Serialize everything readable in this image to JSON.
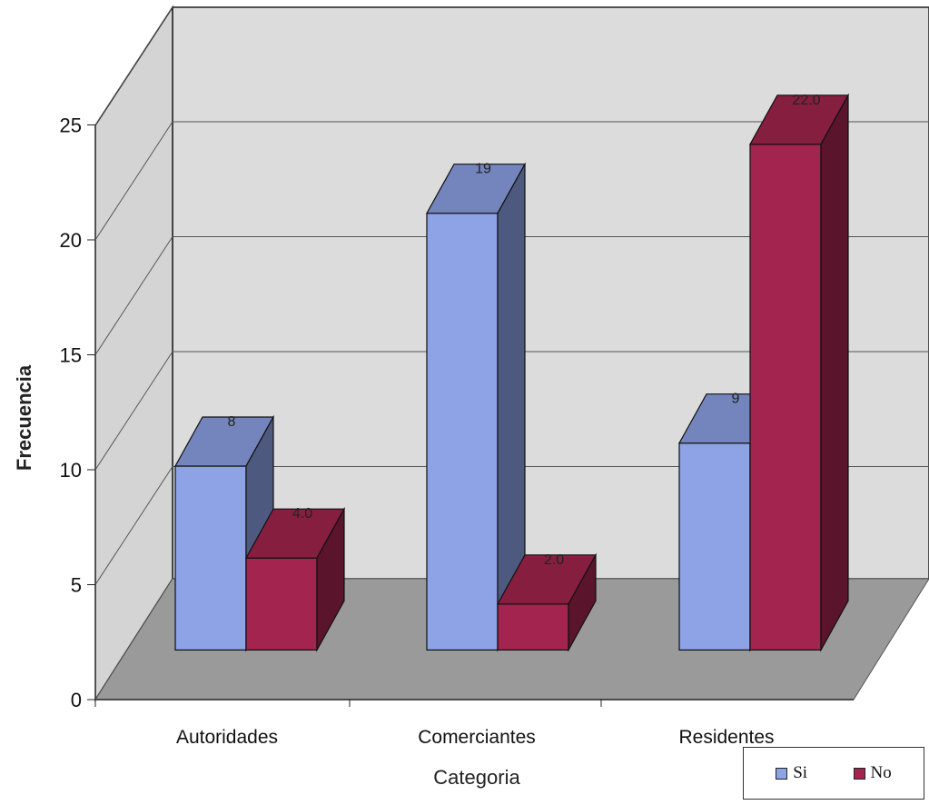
{
  "chart_data": {
    "type": "bar",
    "xlabel": "Categoria",
    "ylabel": "Frecuencia",
    "ylim": [
      0,
      25
    ],
    "yticks": [
      0,
      5,
      10,
      15,
      20,
      25
    ],
    "categories": [
      "Autoridades",
      "Comerciantes",
      "Residentes"
    ],
    "series": [
      {
        "name": "Si",
        "values": [
          8,
          19,
          9
        ],
        "labels": [
          "8",
          "19",
          "9"
        ],
        "color": "#8EA2E6"
      },
      {
        "name": "No",
        "values": [
          4,
          2,
          22
        ],
        "labels": [
          "4.0",
          "2.0",
          "22.0"
        ],
        "color": "#A3244E"
      }
    ],
    "grid": true,
    "legend": "bottom-right",
    "style": "3d-column"
  }
}
